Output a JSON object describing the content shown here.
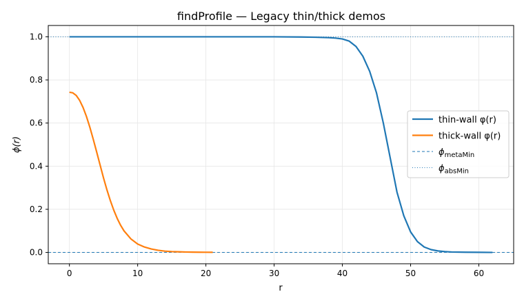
{
  "chart_data": {
    "type": "line",
    "title": "findProfile — Legacy thin/thick demos",
    "xlabel": "r",
    "ylabel": "ϕ(r)",
    "xlim": [
      -3.1,
      65.1
    ],
    "ylim": [
      -0.0525,
      1.0525
    ],
    "xticks": [
      0,
      10,
      20,
      30,
      40,
      50,
      60
    ],
    "yticks": [
      0.0,
      0.2,
      0.4,
      0.6,
      0.8,
      1.0
    ],
    "xtick_labels": [
      "0",
      "10",
      "20",
      "30",
      "40",
      "50",
      "60"
    ],
    "ytick_labels": [
      "0.0",
      "0.2",
      "0.4",
      "0.6",
      "0.8",
      "1.0"
    ],
    "grid": true,
    "legend_position": "center-right",
    "series": [
      {
        "name": "thin-wall φ(r)",
        "color": "#1f77b4",
        "style": "solid",
        "x": [
          0,
          10,
          20,
          30,
          34,
          36,
          38,
          39,
          40,
          41,
          42,
          43,
          44,
          45,
          46,
          46.5,
          47,
          47.5,
          48,
          49,
          50,
          51,
          52,
          53,
          54,
          55,
          56,
          58,
          60,
          62
        ],
        "y": [
          1.0,
          1.0,
          1.0,
          1.0,
          0.999,
          0.998,
          0.996,
          0.994,
          0.99,
          0.98,
          0.955,
          0.91,
          0.84,
          0.74,
          0.6,
          0.52,
          0.44,
          0.36,
          0.28,
          0.17,
          0.095,
          0.05,
          0.025,
          0.013,
          0.007,
          0.004,
          0.002,
          0.001,
          0.0005,
          0.0
        ]
      },
      {
        "name": "thick-wall φ(r)",
        "color": "#ff7f0e",
        "style": "solid",
        "x": [
          0,
          0.5,
          1,
          1.5,
          2,
          2.5,
          3,
          3.5,
          4,
          4.5,
          5,
          5.5,
          6,
          6.5,
          7,
          7.5,
          8,
          9,
          10,
          11,
          12,
          13,
          14,
          15,
          16,
          17,
          18,
          19,
          20,
          21
        ],
        "y": [
          0.743,
          0.74,
          0.728,
          0.705,
          0.672,
          0.63,
          0.58,
          0.524,
          0.465,
          0.405,
          0.345,
          0.29,
          0.24,
          0.196,
          0.158,
          0.126,
          0.1,
          0.063,
          0.039,
          0.025,
          0.016,
          0.01,
          0.006,
          0.004,
          0.003,
          0.002,
          0.0015,
          0.001,
          0.0008,
          0.0005
        ]
      },
      {
        "name": "ϕ",
        "subscript": "metaMin",
        "color": "#1f77b4",
        "style": "dashed",
        "hline": 0.0
      },
      {
        "name": "ϕ",
        "subscript": "absMin",
        "color": "#1f77b4",
        "style": "dotted",
        "hline": 1.0
      }
    ]
  }
}
